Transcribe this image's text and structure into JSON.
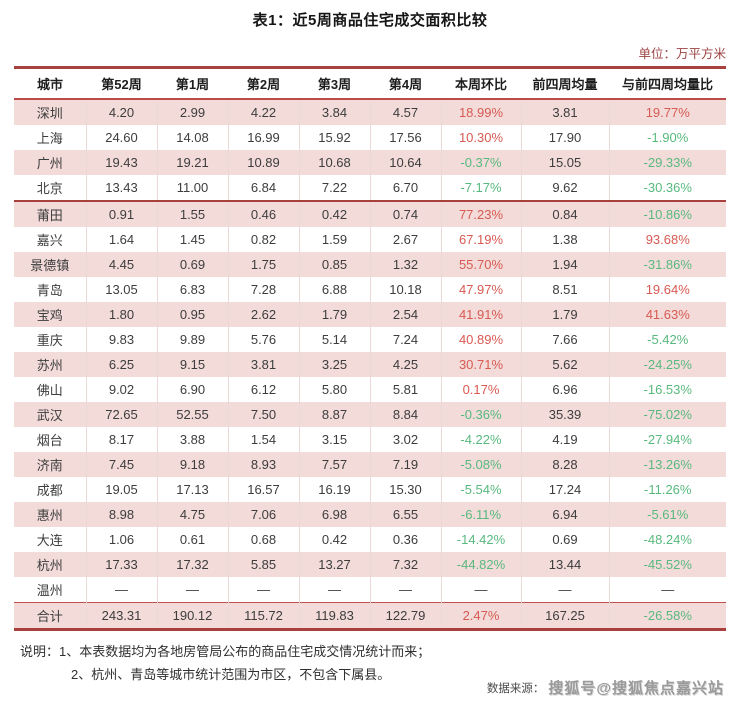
{
  "title": "表1：近5周商品住宅成交面积比较",
  "unit_label": "单位：万平方米",
  "colors": {
    "border_dark_red": "#a8403e",
    "border_red": "#bc4a46",
    "row_pink": "#f2dbd9",
    "positive_red": "#d85a52",
    "negative_green": "#58b97e"
  },
  "table": {
    "columns": [
      "城市",
      "第52周",
      "第1周",
      "第2周",
      "第3周",
      "第4周",
      "本周环比",
      "前四周均量",
      "与前四周均量比"
    ],
    "percent_column_indexes": [
      6,
      8
    ],
    "separator_after_row_index": 3,
    "rows": [
      [
        "深圳",
        "4.20",
        "2.99",
        "4.22",
        "3.84",
        "4.57",
        "18.99%",
        "3.81",
        "19.77%"
      ],
      [
        "上海",
        "24.60",
        "14.08",
        "16.99",
        "15.92",
        "17.56",
        "10.30%",
        "17.90",
        "-1.90%"
      ],
      [
        "广州",
        "19.43",
        "19.21",
        "10.89",
        "10.68",
        "10.64",
        "-0.37%",
        "15.05",
        "-29.33%"
      ],
      [
        "北京",
        "13.43",
        "11.00",
        "6.84",
        "7.22",
        "6.70",
        "-7.17%",
        "9.62",
        "-30.36%"
      ],
      [
        "莆田",
        "0.91",
        "1.55",
        "0.46",
        "0.42",
        "0.74",
        "77.23%",
        "0.84",
        "-10.86%"
      ],
      [
        "嘉兴",
        "1.64",
        "1.45",
        "0.82",
        "1.59",
        "2.67",
        "67.19%",
        "1.38",
        "93.68%"
      ],
      [
        "景德镇",
        "4.45",
        "0.69",
        "1.75",
        "0.85",
        "1.32",
        "55.70%",
        "1.94",
        "-31.86%"
      ],
      [
        "青岛",
        "13.05",
        "6.83",
        "7.28",
        "6.88",
        "10.18",
        "47.97%",
        "8.51",
        "19.64%"
      ],
      [
        "宝鸡",
        "1.80",
        "0.95",
        "2.62",
        "1.79",
        "2.54",
        "41.91%",
        "1.79",
        "41.63%"
      ],
      [
        "重庆",
        "9.83",
        "9.89",
        "5.76",
        "5.14",
        "7.24",
        "40.89%",
        "7.66",
        "-5.42%"
      ],
      [
        "苏州",
        "6.25",
        "9.15",
        "3.81",
        "3.25",
        "4.25",
        "30.71%",
        "5.62",
        "-24.25%"
      ],
      [
        "佛山",
        "9.02",
        "6.90",
        "6.12",
        "5.80",
        "5.81",
        "0.17%",
        "6.96",
        "-16.53%"
      ],
      [
        "武汉",
        "72.65",
        "52.55",
        "7.50",
        "8.87",
        "8.84",
        "-0.36%",
        "35.39",
        "-75.02%"
      ],
      [
        "烟台",
        "8.17",
        "3.88",
        "1.54",
        "3.15",
        "3.02",
        "-4.22%",
        "4.19",
        "-27.94%"
      ],
      [
        "济南",
        "7.45",
        "9.18",
        "8.93",
        "7.57",
        "7.19",
        "-5.08%",
        "8.28",
        "-13.26%"
      ],
      [
        "成都",
        "19.05",
        "17.13",
        "16.57",
        "16.19",
        "15.30",
        "-5.54%",
        "17.24",
        "-11.26%"
      ],
      [
        "惠州",
        "8.98",
        "4.75",
        "7.06",
        "6.98",
        "6.55",
        "-6.11%",
        "6.94",
        "-5.61%"
      ],
      [
        "大连",
        "1.06",
        "0.61",
        "0.68",
        "0.42",
        "0.36",
        "-14.42%",
        "0.69",
        "-48.24%"
      ],
      [
        "杭州",
        "17.33",
        "17.32",
        "5.85",
        "13.27",
        "7.32",
        "-44.82%",
        "13.44",
        "-45.52%"
      ],
      [
        "温州",
        "—",
        "—",
        "—",
        "—",
        "—",
        "—",
        "—",
        "—"
      ]
    ],
    "total_row": [
      "合计",
      "243.31",
      "190.12",
      "115.72",
      "119.83",
      "122.79",
      "2.47%",
      "167.25",
      "-26.58%"
    ]
  },
  "notes": {
    "label": "说明：",
    "line1": "1、本表数据均为各地房管局公布的商品住宅成交情况统计而来；",
    "line2": "2、杭州、青岛等城市统计范围为市区，不包含下属县。"
  },
  "source": {
    "label": "数据来源：",
    "watermark": "搜狐号@搜狐焦点嘉兴站"
  }
}
